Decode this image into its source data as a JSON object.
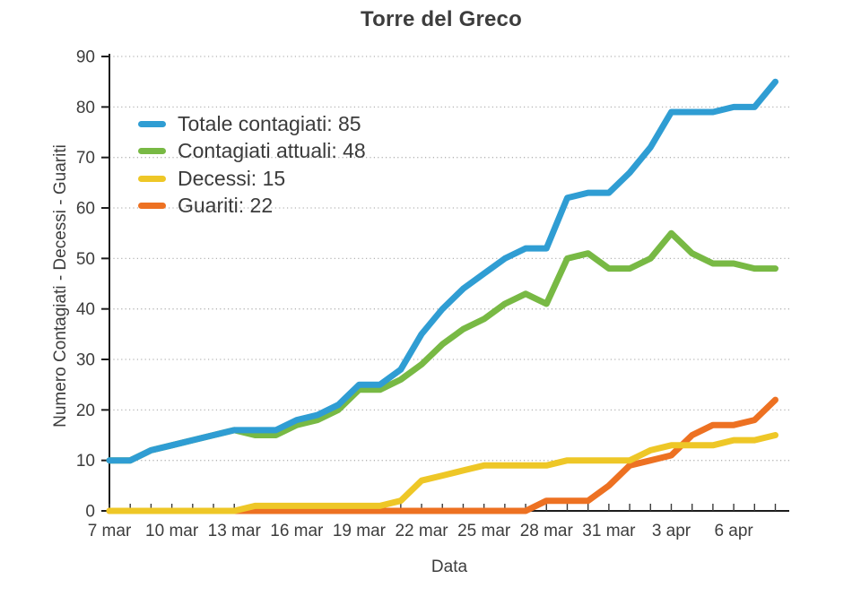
{
  "accent_colors": {
    "totale": "#2f9dd3",
    "attuali": "#78b944",
    "decessi": "#eec727",
    "guariti": "#ed7122",
    "text": "#3d3d3d",
    "grid": "#b3b3b3",
    "axis": "#1c1c1c"
  },
  "chart_data": {
    "type": "line",
    "title": "Torre del Greco",
    "xlabel": "Data",
    "ylabel": "Numero Contagiati - Decessi - Guariti",
    "ylim": [
      0,
      90
    ],
    "ytick_step": 10,
    "grid": "horizontal-dotted",
    "legend_position": "top-left",
    "x": [
      "7 mar",
      "8 mar",
      "9 mar",
      "10 mar",
      "11 mar",
      "12 mar",
      "13 mar",
      "14 mar",
      "15 mar",
      "16 mar",
      "17 mar",
      "18 mar",
      "19 mar",
      "20 mar",
      "21 mar",
      "22 mar",
      "23 mar",
      "24 mar",
      "25 mar",
      "26 mar",
      "27 mar",
      "28 mar",
      "29 mar",
      "30 mar",
      "31 mar",
      "1 apr",
      "2 apr",
      "3 apr",
      "4 apr",
      "5 apr",
      "6 apr",
      "7 apr",
      "8 apr"
    ],
    "x_tick_labels": [
      "7 mar",
      "10 mar",
      "13 mar",
      "16 mar",
      "19 mar",
      "22 mar",
      "25 mar",
      "28 mar",
      "31 mar",
      "3 apr",
      "6 apr"
    ],
    "x_label_every": 3,
    "series": [
      {
        "name": "Totale contagiati",
        "legend": "Totale contagiati: 85",
        "color_key": "totale",
        "final_value": 85,
        "values": [
          10,
          10,
          12,
          13,
          14,
          15,
          16,
          16,
          16,
          18,
          19,
          21,
          25,
          25,
          28,
          35,
          40,
          44,
          47,
          50,
          52,
          52,
          62,
          63,
          63,
          67,
          72,
          79,
          79,
          79,
          80,
          80,
          85
        ]
      },
      {
        "name": "Contagiati attuali",
        "legend": "Contagiati attuali: 48",
        "color_key": "attuali",
        "final_value": 48,
        "values": [
          10,
          10,
          12,
          13,
          14,
          15,
          16,
          15,
          15,
          17,
          18,
          20,
          24,
          24,
          26,
          29,
          33,
          36,
          38,
          41,
          43,
          41,
          50,
          51,
          48,
          48,
          50,
          55,
          51,
          49,
          49,
          48,
          48
        ]
      },
      {
        "name": "Decessi",
        "legend": "Decessi: 15",
        "color_key": "decessi",
        "final_value": 15,
        "values": [
          0,
          0,
          0,
          0,
          0,
          0,
          0,
          1,
          1,
          1,
          1,
          1,
          1,
          1,
          2,
          6,
          7,
          8,
          9,
          9,
          9,
          9,
          10,
          10,
          10,
          10,
          12,
          13,
          13,
          13,
          14,
          14,
          15
        ]
      },
      {
        "name": "Guariti",
        "legend": "Guariti: 22",
        "color_key": "guariti",
        "final_value": 22,
        "values": [
          0,
          0,
          0,
          0,
          0,
          0,
          0,
          0,
          0,
          0,
          0,
          0,
          0,
          0,
          0,
          0,
          0,
          0,
          0,
          0,
          0,
          2,
          2,
          2,
          5,
          9,
          10,
          11,
          15,
          17,
          17,
          18,
          22
        ]
      }
    ]
  }
}
